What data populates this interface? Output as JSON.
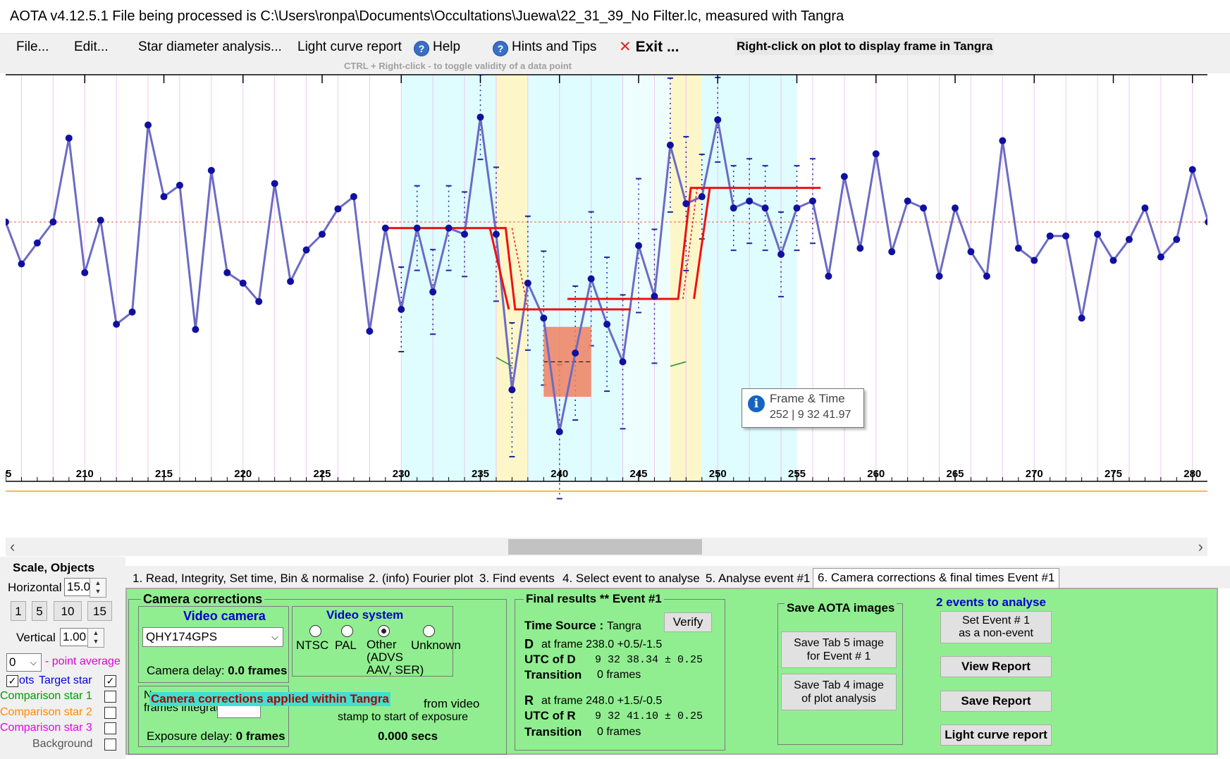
{
  "app": {
    "title": "AOTA v4.12.5.1     File being processed is C:\\Users\\ronpa\\Documents\\Occultations\\Juewa\\22_31_39_No Filter.lc, measured with Tangra"
  },
  "menu": {
    "file": "File...",
    "edit": "Edit...",
    "star_diameter": "Star diameter analysis...",
    "light_curve_report": "Light curve report",
    "help": "Help",
    "hints": "Hints and Tips",
    "exit_icon": "close-x",
    "exit": "Exit ...",
    "right_click_hint": "Right-click on plot to display frame in Tangra",
    "ctrl_hint": "CTRL + Right-click  -  to toggle validity of a data point"
  },
  "tooltip": {
    "title": "Frame & Time",
    "value": "252 |  9 32 41.97"
  },
  "chart_data": {
    "type": "line",
    "x_ticks": [
      "5",
      "210",
      "215",
      "220",
      "225",
      "230",
      "235",
      "240",
      "245",
      "250",
      "255",
      "260",
      "265",
      "270",
      "275",
      "280"
    ],
    "xlim": [
      205,
      281
    ],
    "series": [
      {
        "color": "#6b6bc4",
        "x": [
          205,
          206,
          207,
          208,
          209,
          210,
          211,
          212,
          213,
          214,
          215,
          216,
          217,
          218,
          219,
          220,
          221,
          222,
          223,
          224,
          225,
          226,
          227,
          228,
          229,
          230,
          231,
          232,
          233,
          234,
          235,
          236,
          237,
          238,
          239,
          240,
          241,
          242,
          243,
          244,
          245,
          246,
          247,
          248,
          249,
          250,
          251,
          252,
          253,
          254,
          255,
          256,
          257,
          258,
          259,
          260,
          261,
          262,
          263,
          264,
          265,
          266,
          267,
          268,
          269,
          270,
          271,
          272,
          273,
          274,
          275,
          276,
          277,
          278,
          279,
          280,
          281
        ],
        "y": [
          0.0,
          -0.48,
          -0.24,
          0.0,
          0.96,
          -0.58,
          0.02,
          -1.17,
          -1.03,
          1.11,
          0.29,
          0.42,
          -1.23,
          0.59,
          -0.58,
          -0.7,
          -0.91,
          0.44,
          -0.68,
          -0.32,
          -0.14,
          0.15,
          0.29,
          -1.25,
          -0.07,
          -1.0,
          -0.07,
          -0.8,
          -0.07,
          -0.14,
          1.2,
          -0.14,
          -1.92,
          -0.7,
          -1.1,
          -2.4,
          -1.5,
          -0.65,
          -1.17,
          -1.6,
          -0.27,
          -0.85,
          0.88,
          0.21,
          0.29,
          1.17,
          0.16,
          0.24,
          0.16,
          -0.37,
          0.16,
          0.24,
          -0.62,
          0.52,
          -0.3,
          0.78,
          -0.34,
          0.24,
          0.16,
          -0.62,
          0.16,
          -0.34,
          -0.62,
          0.93,
          -0.3,
          -0.44,
          -0.16,
          -0.16,
          -1.1,
          -0.14,
          -0.44,
          -0.2,
          0.16,
          -0.4,
          -0.2,
          0.6,
          0.0
        ]
      }
    ],
    "baseline_level": 0.0,
    "occulted_level": -1.57,
    "shading": [
      {
        "from": 230.0,
        "to": 236.0,
        "color": "#dffcff"
      },
      {
        "from": 236.0,
        "to": 238.0,
        "color": "#fdf6c9"
      },
      {
        "from": 238.0,
        "to": 244.0,
        "color": "#dffcff"
      },
      {
        "from": 244.0,
        "to": 247.0,
        "color": "#eefeff"
      },
      {
        "from": 247.0,
        "to": 249.0,
        "color": "#fdf6c9"
      },
      {
        "from": 249.0,
        "to": 255.0,
        "color": "#dffcff"
      }
    ],
    "event_D_frame": 238.0,
    "event_R_frame": 248.0
  },
  "scale": {
    "title": "Scale,  Objects",
    "horizontal_label": "Horizontal",
    "horizontal_value": "15.0",
    "btn1": "1",
    "btn5": "5",
    "btn10": "10",
    "btn15": "15",
    "vertical_label": "Vertical",
    "vertical_value": "1.00",
    "point_avg_value": "0",
    "point_avg_label": "- point average",
    "plots_label": "ots",
    "target_star": "Target star",
    "comp1": "Comparison star 1",
    "comp2": "Comparison star 2",
    "comp3": "Comparison star 3",
    "background": "Background"
  },
  "tabs": {
    "t1": "1.  Read, Integrity, Set time, Bin & normalise",
    "t2": "2. (info)  Fourier plot",
    "t3": "3. Find events",
    "t4": "4. Select event to analyse",
    "t5": "5. Analyse event #1",
    "t6": "6. Camera corrections & final times Event #1"
  },
  "camera": {
    "title": "Camera corrections",
    "video_camera_title": "Video camera",
    "camera_value": "QHY174GPS",
    "camera_delay_label": "Camera delay: ",
    "camera_delay_value": "0.0 frames",
    "video_system_title": "Video system",
    "ntsc": "NTSC",
    "pal": "PAL",
    "other": "Other\n(ADVS\nAAV, SER)",
    "unknown": "Unknown",
    "num_frames_label": "Num\nframes integrated",
    "overlay_msg": "Camera corrections applied within Tangra",
    "from_video": "from video",
    "stamp_text": "stamp to start of exposure",
    "exposure_delay_label": "Exposure delay: ",
    "exposure_delay_value": "0 frames",
    "secs_value": "0.000 secs"
  },
  "final": {
    "title": "Final results  **  Event #1",
    "verify": "Verify",
    "time_source_label": "Time Source :",
    "time_source_value": "Tangra",
    "D_label": "D",
    "D_frame": "at frame 238.0  +0.5/-1.5",
    "utc_D_label": "UTC of D",
    "utc_D_value": "9 32 38.34  ± 0.25",
    "trans_label": "Transition",
    "trans_D_value": "0 frames",
    "R_label": "R",
    "R_frame": "at frame 248.0  +1.5/-0.5",
    "utc_R_label": "UTC of R",
    "utc_R_value": "9 32 41.10  ± 0.25",
    "trans_R_value": "0 frames"
  },
  "save_images": {
    "title": "Save AOTA images",
    "tab5": "Save Tab 5 image\nfor Event # 1",
    "tab4": "Save Tab 4 image\nof plot analysis"
  },
  "right": {
    "events": "2  events to analyse",
    "set_event": "Set Event # 1\nas a non-event",
    "view_report": "View Report",
    "save_report": "Save Report",
    "light_curve_report": "Light curve report"
  }
}
